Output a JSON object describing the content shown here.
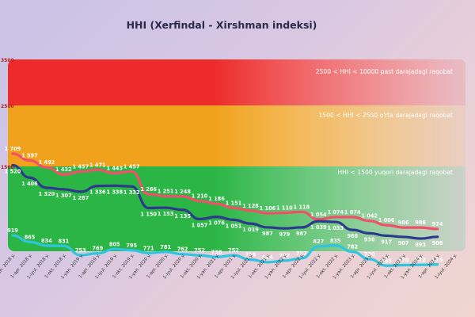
{
  "chart_data": {
    "type": "line",
    "title": "HHI (Xerfindal - Xirshman indeksi)",
    "xlabel": "",
    "ylabel": "",
    "categories": [
      "1-yan. 2018 y.",
      "1-apr. 2018 y.",
      "1-iyul. 2018 y.",
      "1-okt. 2018 y.",
      "1-yan. 2019 y.",
      "1-apr. 2019 y.",
      "1-iyul. 2019 y.",
      "1-okt. 2019 y.",
      "1-yan. 2020 y.",
      "1-apr. 2020 y.",
      "1-iyul. 2020 y.",
      "1-okt. 2020 y.",
      "1-yan. 2021 y.",
      "1-apr. 2021 y.",
      "1-iyul. 2021 y.",
      "1-okt. 2021 y.",
      "1-yan. 2022 y.",
      "1-apr. 2022 y.",
      "1-iyul. 2022 y.",
      "1-okt. 2022 y.",
      "1-yan. 2023 y.",
      "1-apr. 2023 y.",
      "1-iyul. 2023 y.",
      "1-okt. 2023 y.",
      "1-yan. 2024 y.",
      "1-apr. 2024 y.",
      "1-iyul. 2024 y."
    ],
    "series": [
      {
        "name": "",
        "color": "#f0506a",
        "labels_above": true,
        "values": [
          1709,
          1597,
          1492,
          1432,
          1457,
          1471,
          1443,
          1457,
          1266,
          1251,
          1248,
          1210,
          1186,
          1151,
          1128,
          1106,
          1110,
          1118,
          1054,
          1074,
          1074,
          1042,
          1006,
          986,
          986,
          974,
          null
        ]
      },
      {
        "name": "",
        "color": "#2d3a8c",
        "labels_above": false,
        "values": [
          1520,
          1406,
          1320,
          1307,
          1287,
          1336,
          1338,
          1332,
          1150,
          1153,
          1135,
          1057,
          1076,
          1051,
          1019,
          987,
          979,
          987,
          1039,
          1033,
          966,
          938,
          917,
          907,
          893,
          908,
          null
        ]
      },
      {
        "name": "",
        "color": "#2ec5e0",
        "labels_above": true,
        "values": [
          919,
          865,
          834,
          831,
          753,
          769,
          805,
          795,
          771,
          781,
          762,
          752,
          738,
          752,
          716,
          694,
          707,
          727,
          827,
          835,
          782,
          720,
          665,
          670,
          672,
          675,
          null
        ]
      }
    ],
    "zones": [
      {
        "label": "2500 < HHI < 10000 past darajadagi raqobat",
        "from": 2500,
        "to": 3500,
        "color": "#ee2b2b"
      },
      {
        "label": "1500 < HHI < 2500 o'rta darajadagi raqobat",
        "from": 1500,
        "to": 2500,
        "color": "#f1a21c"
      },
      {
        "label": "HHI < 1500 yuqori darajadagi raqobat",
        "from": 0,
        "to": 1500,
        "color": "#2bb545"
      }
    ],
    "yticks": [
      "3500",
      "2500",
      "1500"
    ],
    "ylim": [
      500,
      3500
    ],
    "grid": false,
    "legend": "none"
  }
}
